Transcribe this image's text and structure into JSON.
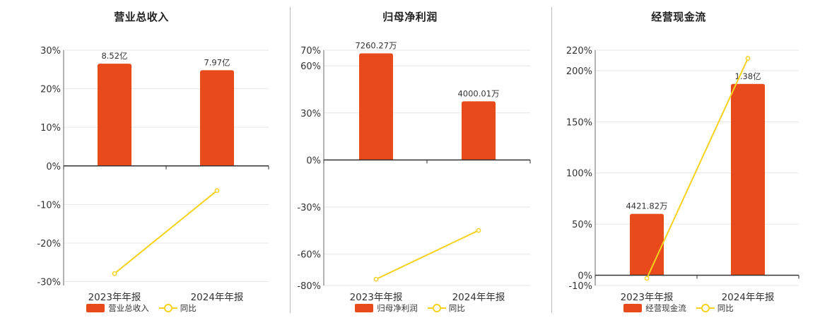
{
  "colors": {
    "bar": "#e84a1b",
    "line": "#f5d21c",
    "grid": "#e6e6e6",
    "axis": "#333333"
  },
  "legend": {
    "line_label": "同比"
  },
  "chart_data": [
    {
      "type": "bar+line",
      "title": "营业总收入",
      "categories": [
        "2023年年报",
        "2024年年报"
      ],
      "series": [
        {
          "name": "营业总收入",
          "type": "bar",
          "values": [
            26.5,
            24.8
          ],
          "labels": [
            "8.52亿",
            "7.97亿"
          ]
        },
        {
          "name": "同比",
          "type": "line",
          "values": [
            -27.9,
            -6.4
          ]
        }
      ],
      "y_ticks": [
        "30%",
        "20%",
        "10%",
        "0%",
        "-10%",
        "-20%",
        "-30%"
      ],
      "ylim": [
        -31,
        30
      ],
      "grid": true
    },
    {
      "type": "bar+line",
      "title": "归母净利润",
      "categories": [
        "2023年年报",
        "2024年年报"
      ],
      "series": [
        {
          "name": "归母净利润",
          "type": "bar",
          "values": [
            68.0,
            37.4
          ],
          "labels": [
            "7260.27万",
            "4000.01万"
          ]
        },
        {
          "name": "同比",
          "type": "line",
          "values": [
            -76.0,
            -44.9
          ]
        }
      ],
      "y_ticks": [
        "70%",
        "60%",
        "30%",
        "0%",
        "-30%",
        "-60%",
        "-80%"
      ],
      "ylim": [
        -80,
        70
      ],
      "grid": true
    },
    {
      "type": "bar+line",
      "title": "经营现金流",
      "categories": [
        "2023年年报",
        "2024年年报"
      ],
      "series": [
        {
          "name": "经营现金流",
          "type": "bar",
          "values": [
            60.0,
            187.0
          ],
          "labels": [
            "4421.82万",
            "1.38亿"
          ]
        },
        {
          "name": "同比",
          "type": "line",
          "values": [
            -3.0,
            212.0
          ]
        }
      ],
      "y_ticks": [
        "220%",
        "200%",
        "150%",
        "100%",
        "50%",
        "0%",
        "-10%"
      ],
      "ylim": [
        -10,
        220
      ],
      "grid": true
    }
  ]
}
